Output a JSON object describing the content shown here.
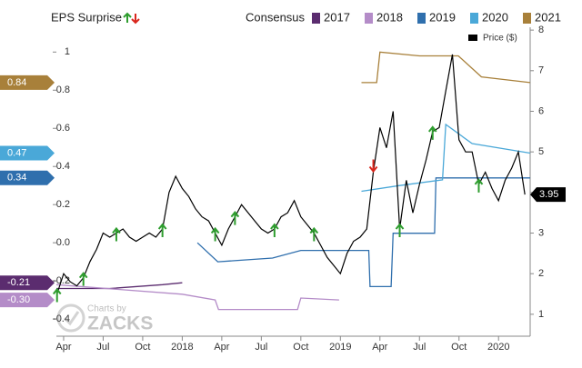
{
  "chart_data": {
    "type": "line",
    "surprise_label": "EPS Surprise",
    "legend_title": "Consensus",
    "watermark": [
      "Charts by",
      "ZACKS"
    ],
    "xlim": [
      -0.1,
      71.8
    ],
    "xticks": [
      {
        "value": 1,
        "label": "Apr"
      },
      {
        "value": 7,
        "label": "Jul"
      },
      {
        "value": 13,
        "label": "Oct"
      },
      {
        "value": 19,
        "label": "2018"
      },
      {
        "value": 25,
        "label": "Apr"
      },
      {
        "value": 31,
        "label": "Jul"
      },
      {
        "value": 37,
        "label": "Oct"
      },
      {
        "value": 43,
        "label": "2019"
      },
      {
        "value": 49,
        "label": "Apr"
      },
      {
        "value": 55,
        "label": "Jul"
      },
      {
        "value": 61,
        "label": "Oct"
      },
      {
        "value": 67,
        "label": "2020"
      }
    ],
    "ylim": [
      -0.49,
      1.13
    ],
    "yticks": [
      -0.4,
      -0.2,
      {
        "value": 0,
        "label": "0.0"
      },
      0.2,
      0.4,
      0.6,
      0.8,
      1
    ],
    "y2lim": [
      0.46,
      8.07
    ],
    "y2ticks": [
      1,
      2,
      3,
      4,
      5,
      6,
      7,
      8
    ],
    "legend": "top-right",
    "series": [
      {
        "name": "2017",
        "color": "#5b2c6f",
        "x": [
          -0.1,
          8,
          16,
          19
        ],
        "values": [
          -0.24,
          -0.24,
          -0.22,
          -0.21
        ]
      },
      {
        "name": "2018",
        "color": "#b48cc8",
        "x": [
          -0.1,
          19,
          24,
          24.5,
          36.5,
          37,
          42.8
        ],
        "values": [
          -0.22,
          -0.27,
          -0.3,
          -0.35,
          -0.35,
          -0.29,
          -0.3
        ]
      },
      {
        "name": "2019",
        "color": "#2f6fad",
        "x": [
          21.3,
          24.4,
          32.7,
          37,
          47.3,
          47.5,
          50.7,
          51,
          57.3,
          57.5,
          71.8
        ],
        "values": [
          0,
          -0.1,
          -0.08,
          -0.04,
          -0.04,
          -0.23,
          -0.23,
          0.05,
          0.05,
          0.34,
          0.34
        ]
      },
      {
        "name": "2020",
        "color": "#4aa8d8",
        "x": [
          46.2,
          52,
          58.5,
          59,
          63,
          71.8
        ],
        "values": [
          0.27,
          0.3,
          0.33,
          0.62,
          0.52,
          0.47
        ]
      },
      {
        "name": "2021",
        "color": "#a8803a",
        "x": [
          46.2,
          48.5,
          49,
          55,
          60.9,
          64.4,
          71.8
        ],
        "values": [
          0.84,
          0.84,
          1.0,
          0.98,
          0.98,
          0.87,
          0.84
        ]
      },
      {
        "name": "Price ($)",
        "color": "#000000",
        "axis": "y2",
        "values": [
          1.5,
          2.0,
          1.8,
          1.7,
          1.9,
          2.3,
          2.6,
          3.0,
          2.9,
          3.0,
          3.1,
          2.9,
          2.8,
          2.9,
          3.0,
          2.9,
          3.1,
          4.0,
          4.4,
          4.1,
          3.9,
          3.6,
          3.4,
          3.3,
          3.0,
          2.7,
          3.1,
          3.4,
          3.7,
          3.5,
          3.3,
          3.1,
          3.0,
          3.1,
          3.4,
          3.5,
          3.8,
          3.4,
          3.2,
          3.0,
          2.7,
          2.4,
          2.2,
          2.0,
          2.5,
          2.8,
          2.9,
          3.1,
          4.5,
          5.6,
          5.1,
          6.0,
          3.1,
          4.3,
          3.5,
          4.2,
          4.8,
          5.5,
          5.6,
          6.5,
          7.4,
          5.3,
          5.0,
          5.0,
          4.2,
          4.5,
          4.1,
          3.8,
          4.3,
          4.6,
          5.0,
          3.95
        ]
      }
    ],
    "eps_surprise": [
      "up",
      null,
      null,
      null,
      "up",
      null,
      null,
      null,
      null,
      "up",
      null,
      null,
      null,
      null,
      null,
      null,
      "up",
      null,
      null,
      null,
      null,
      null,
      null,
      null,
      "up",
      null,
      null,
      "up",
      null,
      null,
      null,
      null,
      null,
      "up",
      null,
      null,
      null,
      null,
      null,
      "up",
      null,
      null,
      null,
      null,
      null,
      null,
      null,
      null,
      "down",
      null,
      null,
      null,
      "up",
      null,
      null,
      null,
      null,
      "up",
      null,
      null,
      null,
      null,
      null,
      null,
      "up",
      null,
      null,
      null,
      null,
      null,
      null,
      null
    ],
    "ytags": [
      {
        "value": 0.84,
        "label": "0.84",
        "color": "#a8803a"
      },
      {
        "value": 0.47,
        "label": "0.47",
        "color": "#4aa8d8"
      },
      {
        "value": 0.34,
        "label": "0.34",
        "color": "#2f6fad"
      },
      {
        "value": -0.21,
        "label": "-0.21",
        "color": "#5b2c6f"
      },
      {
        "value": -0.3,
        "label": "-0.30",
        "color": "#b48cc8"
      }
    ],
    "y2tags": [
      {
        "value": 3.95,
        "label": "3.95",
        "color": "#000000"
      }
    ]
  }
}
